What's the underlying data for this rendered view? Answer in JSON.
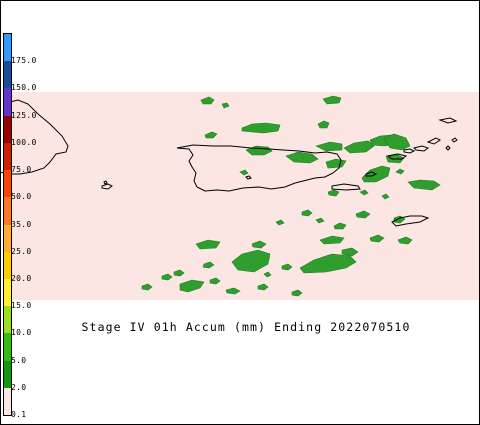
{
  "caption": "Stage IV 01h Accum (mm) Ending 2022070510",
  "legend": {
    "labels": [
      "175.0",
      "150.0",
      "125.0",
      "100.0",
      "75.0",
      "50.0",
      "35.0",
      "25.0",
      "20.0",
      "15.0",
      "10.0",
      "5.0",
      "2.0",
      "0.1"
    ],
    "colors": [
      "#3399ff",
      "#1a4c99",
      "#6633cc",
      "#990000",
      "#cc2200",
      "#ff4400",
      "#ff7722",
      "#ffaa33",
      "#ffcc00",
      "#ffee33",
      "#99dd22",
      "#33bb11",
      "#119911",
      "#fbe6e3"
    ]
  },
  "colors": {
    "no_data_background": "#ffffff",
    "zero_precip_field": "#fbe6e3",
    "rain_light": "#339933",
    "rain_moderate": "#22aa22",
    "coastline": "#000000"
  }
}
